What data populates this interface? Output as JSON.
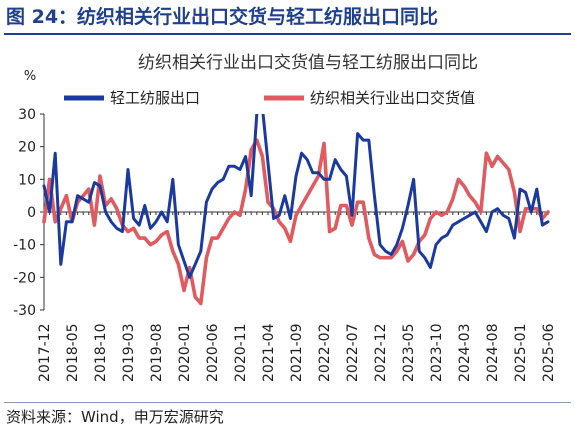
{
  "figure": {
    "title": "图 24：纺织相关行业出口交货与轻工纺服出口同比",
    "source": "资料来源：Wind，申万宏源研究"
  },
  "colors": {
    "header": "#1f3f8f",
    "series_blue": "#1b3aa0",
    "series_red": "#e05a5f"
  },
  "chart_data": {
    "type": "line",
    "title": "纺织相关行业出口交货值与轻工纺服出口同比",
    "ylabel": "%",
    "ylim": [
      -30,
      30
    ],
    "yticks": [
      -30,
      -20,
      -10,
      0,
      10,
      20,
      30
    ],
    "grid": false,
    "legend_position": "top",
    "xticklabels": [
      "2017-12",
      "2018-05",
      "2018-10",
      "2019-03",
      "2019-08",
      "2020-01",
      "2020-06",
      "2020-11",
      "2021-04",
      "2021-09",
      "2022-02",
      "2022-07",
      "2022-12",
      "2023-05",
      "2023-10",
      "2024-03",
      "2024-08",
      "2025-01",
      "2025-06"
    ],
    "x": [
      "2017-12",
      "2018-01",
      "2018-02",
      "2018-03",
      "2018-04",
      "2018-05",
      "2018-06",
      "2018-07",
      "2018-08",
      "2018-09",
      "2018-10",
      "2018-11",
      "2018-12",
      "2019-01",
      "2019-02",
      "2019-03",
      "2019-04",
      "2019-05",
      "2019-06",
      "2019-07",
      "2019-08",
      "2019-09",
      "2019-10",
      "2019-11",
      "2019-12",
      "2020-01",
      "2020-02",
      "2020-03",
      "2020-04",
      "2020-05",
      "2020-06",
      "2020-07",
      "2020-08",
      "2020-09",
      "2020-10",
      "2020-11",
      "2020-12",
      "2021-01",
      "2021-02",
      "2021-03",
      "2021-04",
      "2021-05",
      "2021-06",
      "2021-07",
      "2021-08",
      "2021-09",
      "2021-10",
      "2021-11",
      "2021-12",
      "2022-01",
      "2022-02",
      "2022-03",
      "2022-04",
      "2022-05",
      "2022-06",
      "2022-07",
      "2022-08",
      "2022-09",
      "2022-10",
      "2022-11",
      "2022-12",
      "2023-01",
      "2023-02",
      "2023-03",
      "2023-04",
      "2023-05",
      "2023-06",
      "2023-07",
      "2023-08",
      "2023-09",
      "2023-10",
      "2023-11",
      "2023-12",
      "2024-01",
      "2024-02",
      "2024-03",
      "2024-04",
      "2024-05",
      "2024-06",
      "2024-07",
      "2024-08",
      "2024-09",
      "2024-10",
      "2024-11",
      "2024-12",
      "2025-01",
      "2025-02",
      "2025-03",
      "2025-04",
      "2025-05",
      "2025-06"
    ],
    "series": [
      {
        "name": "轻工纺服出口",
        "color": "#1b3aa0",
        "values": [
          8,
          0,
          18,
          -16,
          -3,
          -3,
          5,
          4,
          3,
          9,
          8,
          0,
          -3,
          -5,
          -6,
          13,
          -2,
          -4,
          2,
          -5,
          -3,
          0,
          -3,
          10,
          -10,
          -15,
          -20,
          -16,
          -12,
          3,
          7,
          9,
          10,
          14,
          14,
          13,
          17,
          5,
          30,
          32,
          15,
          -2,
          -1,
          5,
          -2,
          11,
          18,
          16,
          12,
          12,
          10,
          10,
          16,
          13,
          11,
          -1,
          24,
          22,
          22,
          5,
          -10,
          -12,
          -13,
          -10,
          -5,
          2,
          10,
          -12,
          -14,
          -17,
          -10,
          -8,
          -7,
          -4,
          -3,
          -2,
          -1,
          0,
          -3,
          -6,
          0,
          1,
          -1,
          -2,
          -8,
          7,
          6,
          0,
          7,
          -4,
          -3
        ]
      },
      {
        "name": "纺织相关行业出口交货值",
        "color": "#e05a5f",
        "values": [
          -3,
          10,
          -3,
          1,
          5,
          -3,
          3,
          5,
          7,
          -4,
          11,
          2,
          4,
          1,
          -4,
          -6,
          -5,
          -8,
          -8,
          -10,
          -9,
          -7,
          -6,
          -12,
          -16,
          -24,
          -17,
          -26,
          -28,
          -14,
          -8,
          -8,
          -5,
          -2,
          0,
          -1,
          7,
          19,
          22,
          17,
          3,
          1,
          -3,
          -5,
          -9,
          -1,
          2,
          5,
          8,
          11,
          21,
          -6,
          -5,
          2,
          2,
          -4,
          3,
          3,
          -8,
          -13,
          -14,
          -14,
          -14,
          -12,
          -9,
          -15,
          -13,
          -9,
          -7,
          -2,
          0,
          -1,
          0,
          4,
          10,
          8,
          5,
          3,
          0,
          18,
          14,
          17,
          15,
          13,
          6,
          -6,
          1,
          1,
          1,
          -2,
          0
        ]
      }
    ]
  }
}
